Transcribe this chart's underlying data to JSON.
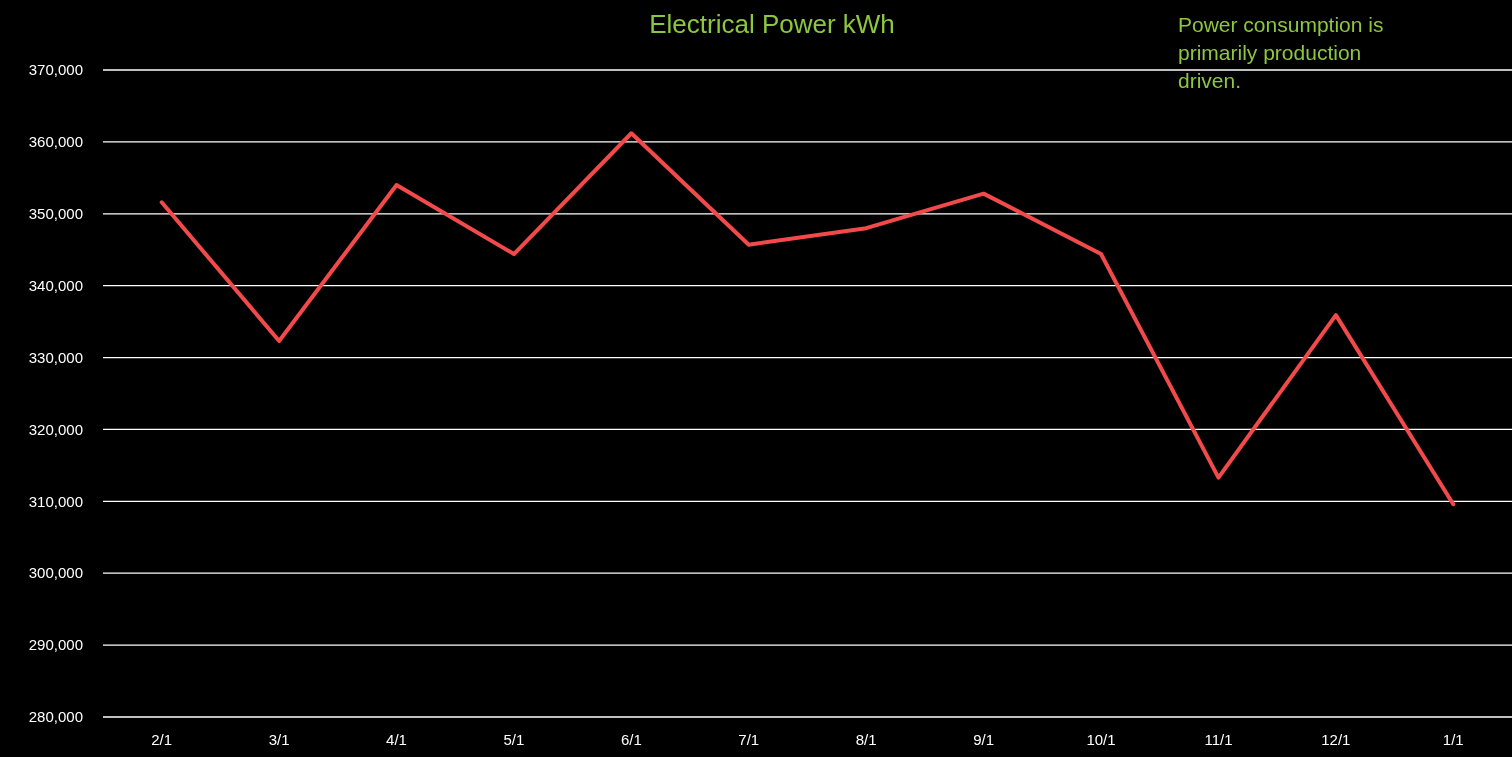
{
  "chart_data": {
    "type": "line",
    "title": "Electrical Power kWh",
    "annotations": [
      "Power consumption is primarily production driven."
    ],
    "categories": [
      "2/1",
      "3/1",
      "4/1",
      "5/1",
      "6/1",
      "7/1",
      "8/1",
      "9/1",
      "10/1",
      "11/1",
      "12/1",
      "1/1"
    ],
    "series": [
      {
        "color": "#f24a4a",
        "values": [
          351600,
          332300,
          354000,
          344400,
          361200,
          345700,
          348000,
          352800,
          344400,
          313300,
          335900,
          309600
        ]
      }
    ],
    "ylim": [
      280000,
      370000
    ],
    "yticks": [
      {
        "value": 280000,
        "label": "280,000"
      },
      {
        "value": 290000,
        "label": "290,000"
      },
      {
        "value": 300000,
        "label": "300,000"
      },
      {
        "value": 310000,
        "label": "310,000"
      },
      {
        "value": 320000,
        "label": "320,000"
      },
      {
        "value": 330000,
        "label": "330,000"
      },
      {
        "value": 340000,
        "label": "340,000"
      },
      {
        "value": 350000,
        "label": "350,000"
      },
      {
        "value": 360000,
        "label": "360,000"
      },
      {
        "value": 370000,
        "label": "370,000"
      }
    ],
    "grid": "y",
    "marker": "none",
    "line_style": "solid"
  }
}
